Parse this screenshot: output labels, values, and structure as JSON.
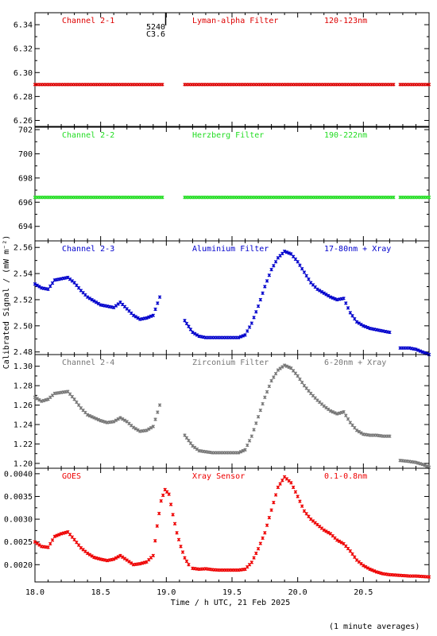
{
  "figure": {
    "ylabel": "Calibrated Signal / (mW m⁻²)",
    "xlabel": "Time / h UTC, 21 Feb 2025",
    "footnote": "(1 minute averages)",
    "marker_label_top": "5240",
    "marker_label_bottom": "C3.6"
  },
  "chart_data": [
    {
      "type": "scatter",
      "name_label": "Channel 2-1",
      "filter_label": "Lyman-alpha Filter",
      "band_label": "120-123nm",
      "color": "#dd0000",
      "xlim": [
        18.0,
        21.0
      ],
      "ylim": [
        6.255,
        6.35
      ],
      "yticks": [
        6.26,
        6.28,
        6.3,
        6.32,
        6.34
      ],
      "ytick_labels": [
        "6.26",
        "6.28",
        "6.30",
        "6.32",
        "6.34"
      ],
      "segments": [
        {
          "x": [
            18.0,
            18.97
          ],
          "y": [
            6.29,
            6.29
          ]
        },
        {
          "x": [
            19.14,
            20.73
          ],
          "y": [
            6.29,
            6.29
          ]
        },
        {
          "x": [
            20.78,
            21.0
          ],
          "y": [
            6.29,
            6.29
          ]
        }
      ]
    },
    {
      "type": "scatter",
      "name_label": "Channel 2-2",
      "filter_label": "Herzberg Filter",
      "band_label": "190-222nm",
      "color": "#22dd22",
      "xlim": [
        18.0,
        21.0
      ],
      "ylim": [
        692.8,
        702.2
      ],
      "yticks": [
        694,
        696,
        698,
        700,
        702
      ],
      "ytick_labels": [
        "694",
        "696",
        "698",
        "700",
        "702"
      ],
      "segments": [
        {
          "x": [
            18.0,
            18.97
          ],
          "y": [
            696.4,
            696.4
          ]
        },
        {
          "x": [
            19.14,
            20.73
          ],
          "y": [
            696.4,
            696.4
          ]
        },
        {
          "x": [
            20.78,
            21.0
          ],
          "y": [
            696.4,
            696.4
          ]
        }
      ]
    },
    {
      "type": "scatter",
      "name_label": "Channel 2-3",
      "filter_label": "Aluminium Filter",
      "band_label": "17-80nm + Xray",
      "color": "#0000cc",
      "xlim": [
        18.0,
        21.0
      ],
      "ylim": [
        2.478,
        2.565
      ],
      "yticks": [
        2.48,
        2.5,
        2.52,
        2.54,
        2.56
      ],
      "ytick_labels": [
        "2.48",
        "2.50",
        "2.52",
        "2.54",
        "2.56"
      ],
      "segments": [
        {
          "x": [
            18.0,
            18.05,
            18.1,
            18.15,
            18.2,
            18.25,
            18.3,
            18.35,
            18.4,
            18.45,
            18.5,
            18.55,
            18.6,
            18.65,
            18.7,
            18.75,
            18.8,
            18.85,
            18.9,
            18.95
          ],
          "y": [
            2.532,
            2.529,
            2.528,
            2.535,
            2.536,
            2.537,
            2.533,
            2.527,
            2.522,
            2.519,
            2.516,
            2.515,
            2.514,
            2.518,
            2.513,
            2.508,
            2.505,
            2.506,
            2.508,
            2.522
          ]
        },
        {
          "x": [
            19.14,
            19.2,
            19.25,
            19.3,
            19.35,
            19.4,
            19.45,
            19.5,
            19.55,
            19.6,
            19.65,
            19.7,
            19.75,
            19.8,
            19.85,
            19.9,
            19.95,
            20.0,
            20.05,
            20.1,
            20.15,
            20.2,
            20.25,
            20.3,
            20.35,
            20.4,
            20.45,
            20.5,
            20.55,
            20.6,
            20.65,
            20.7
          ],
          "y": [
            2.504,
            2.495,
            2.492,
            2.491,
            2.491,
            2.491,
            2.491,
            2.491,
            2.491,
            2.493,
            2.502,
            2.515,
            2.53,
            2.543,
            2.552,
            2.557,
            2.555,
            2.549,
            2.541,
            2.533,
            2.528,
            2.525,
            2.522,
            2.52,
            2.521,
            2.51,
            2.503,
            2.5,
            2.498,
            2.497,
            2.496,
            2.495
          ]
        },
        {
          "x": [
            20.78,
            20.85,
            20.9,
            20.95,
            21.0
          ],
          "y": [
            2.483,
            2.483,
            2.482,
            2.48,
            2.478
          ]
        }
      ]
    },
    {
      "type": "scatter",
      "name_label": "Channel 2-4",
      "filter_label": "Zirconium Filter",
      "band_label": "6-20nm + Xray",
      "color": "#777777",
      "xlim": [
        18.0,
        21.0
      ],
      "ylim": [
        1.195,
        1.312
      ],
      "yticks": [
        1.2,
        1.22,
        1.24,
        1.26,
        1.28,
        1.3
      ],
      "ytick_labels": [
        "1.20",
        "1.22",
        "1.24",
        "1.26",
        "1.28",
        "1.30"
      ],
      "segments": [
        {
          "x": [
            18.0,
            18.05,
            18.1,
            18.15,
            18.2,
            18.25,
            18.3,
            18.35,
            18.4,
            18.45,
            18.5,
            18.55,
            18.6,
            18.65,
            18.7,
            18.75,
            18.8,
            18.85,
            18.9,
            18.95
          ],
          "y": [
            1.268,
            1.264,
            1.266,
            1.272,
            1.273,
            1.274,
            1.266,
            1.257,
            1.25,
            1.247,
            1.244,
            1.242,
            1.243,
            1.247,
            1.243,
            1.237,
            1.233,
            1.234,
            1.238,
            1.26
          ]
        },
        {
          "x": [
            19.14,
            19.2,
            19.25,
            19.3,
            19.35,
            19.4,
            19.45,
            19.5,
            19.55,
            19.6,
            19.65,
            19.7,
            19.75,
            19.8,
            19.85,
            19.9,
            19.95,
            20.0,
            20.05,
            20.1,
            20.15,
            20.2,
            20.25,
            20.3,
            20.35,
            20.4,
            20.45,
            20.5,
            20.55,
            20.6,
            20.65,
            20.7
          ],
          "y": [
            1.229,
            1.218,
            1.213,
            1.212,
            1.211,
            1.211,
            1.211,
            1.211,
            1.211,
            1.214,
            1.228,
            1.248,
            1.268,
            1.285,
            1.296,
            1.301,
            1.298,
            1.29,
            1.28,
            1.272,
            1.265,
            1.259,
            1.254,
            1.251,
            1.253,
            1.242,
            1.234,
            1.23,
            1.229,
            1.229,
            1.228,
            1.228
          ]
        },
        {
          "x": [
            20.78,
            20.85,
            20.9,
            20.95,
            21.0
          ],
          "y": [
            1.203,
            1.202,
            1.201,
            1.199,
            1.196
          ]
        }
      ]
    },
    {
      "type": "scatter",
      "name_label": "GOES",
      "filter_label": "Xray Sensor",
      "band_label": "0.1-0.8nm",
      "color": "#ee0000",
      "xlim": [
        18.0,
        21.0
      ],
      "ylim": [
        0.00162,
        0.00412
      ],
      "yticks": [
        0.002,
        0.0025,
        0.003,
        0.0035,
        0.004
      ],
      "ytick_labels": [
        "0.0020",
        "0.0025",
        "0.0030",
        "0.0035",
        "0.0040"
      ],
      "segments": [
        {
          "x": [
            18.0,
            18.05,
            18.1,
            18.15,
            18.2,
            18.25,
            18.3,
            18.35,
            18.4,
            18.45,
            18.5,
            18.55,
            18.6,
            18.65,
            18.7,
            18.75,
            18.8,
            18.85,
            18.9,
            18.93,
            18.96,
            18.99,
            19.02,
            19.05,
            19.08,
            19.11,
            19.14,
            19.17
          ],
          "y": [
            0.0025,
            0.0024,
            0.00238,
            0.00262,
            0.00268,
            0.00272,
            0.00255,
            0.00237,
            0.00225,
            0.00216,
            0.00212,
            0.00209,
            0.00212,
            0.0022,
            0.0021,
            0.002,
            0.00202,
            0.00206,
            0.0022,
            0.00285,
            0.0034,
            0.00365,
            0.00355,
            0.0031,
            0.0027,
            0.0024,
            0.00215,
            0.002
          ]
        },
        {
          "x": [
            19.2,
            19.25,
            19.3,
            19.35,
            19.4,
            19.45,
            19.5,
            19.55,
            19.6,
            19.65,
            19.7,
            19.75,
            19.8,
            19.85,
            19.9,
            19.95,
            20.0,
            20.05,
            20.1,
            20.15,
            20.2,
            20.25,
            20.3,
            20.35,
            20.4,
            20.45,
            20.5,
            20.55,
            20.6,
            20.65,
            20.7,
            20.75,
            20.8,
            20.85,
            20.9,
            20.95,
            21.0
          ],
          "y": [
            0.00192,
            0.0019,
            0.00191,
            0.00189,
            0.00188,
            0.00188,
            0.00188,
            0.00188,
            0.0019,
            0.00205,
            0.00235,
            0.0027,
            0.0032,
            0.0037,
            0.00393,
            0.0038,
            0.0035,
            0.00318,
            0.003,
            0.00288,
            0.00276,
            0.00268,
            0.00254,
            0.00246,
            0.0023,
            0.0021,
            0.00198,
            0.0019,
            0.00184,
            0.0018,
            0.00178,
            0.00177,
            0.00176,
            0.00175,
            0.00175,
            0.00174,
            0.00173
          ]
        }
      ]
    }
  ]
}
